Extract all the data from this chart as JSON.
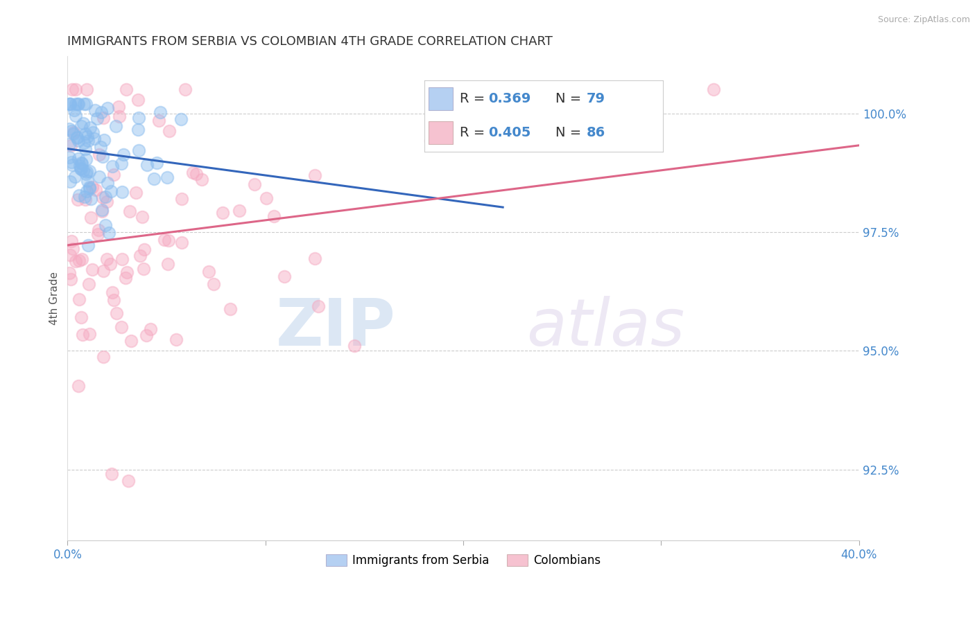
{
  "title": "IMMIGRANTS FROM SERBIA VS COLOMBIAN 4TH GRADE CORRELATION CHART",
  "source": "Source: ZipAtlas.com",
  "ylabel": "4th Grade",
  "right_yticks": [
    92.5,
    95.0,
    97.5,
    100.0
  ],
  "right_ytick_labels": [
    "92.5%",
    "95.0%",
    "97.5%",
    "100.0%"
  ],
  "legend_entries": [
    {
      "label": "Immigrants from Serbia",
      "R": "0.369",
      "N": "79",
      "color": "#a8c8f0"
    },
    {
      "label": "Colombians",
      "R": "0.405",
      "N": "86",
      "color": "#f5b8c8"
    }
  ],
  "serbia_color": "#88bbee",
  "colombia_color": "#f5a8c0",
  "serbia_line_color": "#3366bb",
  "colombia_line_color": "#dd6688",
  "xmin": 0.0,
  "xmax": 0.4,
  "ymin": 91.0,
  "ymax": 101.2,
  "watermark_zip": "ZIP",
  "watermark_atlas": "atlas",
  "grid_color": "#cccccc",
  "background_color": "#ffffff",
  "serbia_R": 0.369,
  "colombia_R": 0.405
}
